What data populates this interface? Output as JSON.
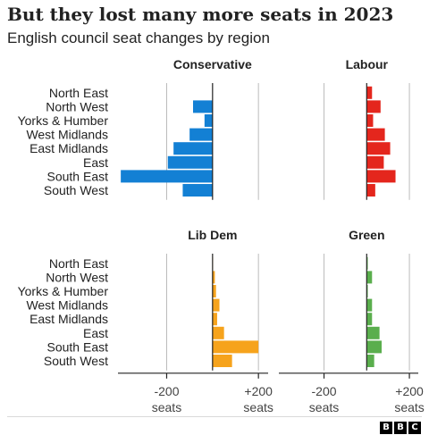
{
  "title": "But they lost many more seats in 2023",
  "subtitle": "English council seat changes by region",
  "logo": {
    "letters": [
      "B",
      "B",
      "C"
    ]
  },
  "colors": {
    "Conservative": "#1380d4",
    "Labour": "#e4261d",
    "Lib Dem": "#f6a31c",
    "Green": "#5aae4d",
    "grid": "#bbbbbb",
    "axis": "#222222"
  },
  "chart_data": [
    {
      "type": "bar",
      "orientation": "horizontal",
      "title": "Conservative",
      "categories": [
        "North East",
        "North West",
        "Yorks & Humber",
        "West Midlands",
        "East Midlands",
        "East",
        "South East",
        "South West"
      ],
      "values": [
        0,
        -85,
        -35,
        -100,
        -170,
        -195,
        -400,
        -130
      ],
      "xlim": [
        -420,
        250
      ],
      "xticks": [
        -200,
        0,
        200
      ]
    },
    {
      "type": "bar",
      "orientation": "horizontal",
      "title": "Labour",
      "categories": [
        "North East",
        "North West",
        "Yorks & Humber",
        "West Midlands",
        "East Midlands",
        "East",
        "South East",
        "South West"
      ],
      "values": [
        25,
        65,
        30,
        85,
        110,
        80,
        135,
        40
      ],
      "xlim": [
        -420,
        250
      ],
      "xticks": [
        -200,
        0,
        200
      ]
    },
    {
      "type": "bar",
      "orientation": "horizontal",
      "title": "Lib Dem",
      "categories": [
        "North East",
        "North West",
        "Yorks & Humber",
        "West Midlands",
        "East Midlands",
        "East",
        "South East",
        "South West"
      ],
      "values": [
        2,
        10,
        15,
        30,
        20,
        50,
        200,
        85
      ],
      "xlim": [
        -420,
        250
      ],
      "xticks": [
        -200,
        0,
        200
      ],
      "xticklabels": [
        "-200",
        "+200"
      ],
      "xlabel": "seats"
    },
    {
      "type": "bar",
      "orientation": "horizontal",
      "title": "Green",
      "categories": [
        "North East",
        "North West",
        "Yorks & Humber",
        "West Midlands",
        "East Midlands",
        "East",
        "South East",
        "South West"
      ],
      "values": [
        5,
        25,
        5,
        25,
        25,
        60,
        70,
        35
      ],
      "xlim": [
        -420,
        250
      ],
      "xticks": [
        -200,
        0,
        200
      ],
      "xticklabels": [
        "-200",
        "+200"
      ],
      "xlabel": "seats"
    }
  ]
}
